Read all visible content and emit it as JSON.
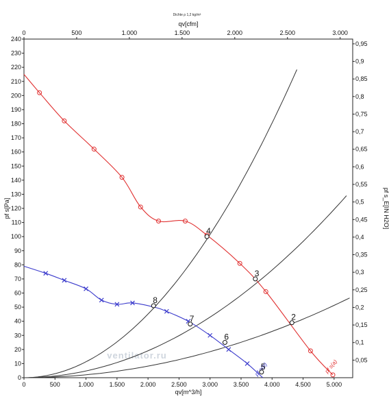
{
  "chart_data": {
    "type": "line",
    "title": "Dichte ρ 1,2 kg/m³",
    "xlabel": "qv[m^3/h]",
    "x2label": "qv[cfm]",
    "ylabel": "pf s[Pa]",
    "y2label": "pf s_E[IN H2O]",
    "watermark": "ventilator.ru",
    "xlim": [
      0,
      5300
    ],
    "ylim": [
      0,
      240
    ],
    "x2lim": [
      0,
      3119
    ],
    "y2lim": [
      0,
      0.9635
    ],
    "grid": false,
    "x_ticks": [
      "0",
      "500",
      "1.000",
      "1.500",
      "2.000",
      "2.500",
      "3.000",
      "3.500",
      "4.000",
      "4.500",
      "5.000"
    ],
    "x2_ticks": [
      "0",
      "500",
      "1.000",
      "1.500",
      "2.000",
      "2.500",
      "3.000"
    ],
    "y_ticks": [
      "0",
      "10",
      "20",
      "30",
      "40",
      "50",
      "60",
      "70",
      "80",
      "90",
      "100",
      "110",
      "120",
      "130",
      "140",
      "150",
      "160",
      "170",
      "180",
      "190",
      "200",
      "210",
      "220",
      "230",
      "240"
    ],
    "y2_ticks": [
      "0,05",
      "0,1",
      "0,15",
      "0,2",
      "0,25",
      "0,3",
      "0,35",
      "0,4",
      "0,45",
      "0,5",
      "0,55",
      "0,6",
      "0,65",
      "0,7",
      "0,75",
      "0,8",
      "0,85",
      "0,9",
      "0,95"
    ],
    "series": [
      {
        "name": "pf s(a)",
        "color": "#e03030",
        "marker": "circle",
        "x": [
          0,
          250,
          650,
          1130,
          1580,
          1880,
          2170,
          2600,
          2950,
          3480,
          3900,
          4620,
          4980
        ],
        "y": [
          215,
          202,
          182,
          162,
          142,
          121,
          111,
          111,
          101,
          81,
          61,
          19,
          2
        ],
        "markers": [
          [
            250,
            202
          ],
          [
            650,
            182
          ],
          [
            1130,
            162
          ],
          [
            1580,
            142
          ],
          [
            1880,
            121
          ],
          [
            2170,
            111
          ],
          [
            2600,
            111
          ],
          [
            2950,
            101
          ],
          [
            3480,
            81
          ],
          [
            3900,
            61
          ],
          [
            4620,
            19
          ],
          [
            4980,
            2
          ]
        ]
      },
      {
        "name": "pf s(b)",
        "color": "#3a3acc",
        "marker": "x",
        "x": [
          0,
          350,
          650,
          1000,
          1250,
          1500,
          1750,
          2100,
          2300,
          2650,
          3000,
          3300,
          3600,
          3850
        ],
        "y": [
          79,
          74,
          69,
          63,
          55,
          52,
          53,
          50,
          47,
          40,
          30,
          20,
          10,
          0
        ],
        "markers": [
          [
            350,
            74
          ],
          [
            650,
            69
          ],
          [
            1000,
            63
          ],
          [
            1250,
            55
          ],
          [
            1500,
            52
          ],
          [
            1750,
            53
          ],
          [
            2300,
            47
          ],
          [
            2650,
            40
          ],
          [
            3000,
            30
          ],
          [
            3300,
            20
          ],
          [
            3600,
            10
          ]
        ]
      }
    ],
    "system_curves": [
      {
        "name": "curve-4",
        "k_pa": 11.28,
        "x_end": 4400
      },
      {
        "name": "curve-3",
        "k_pa": 4.77,
        "x_end": 5200
      },
      {
        "name": "curve-2",
        "k_pa": 2.05,
        "x_end": 5250
      }
    ],
    "operating_points": [
      {
        "label": "4",
        "x": 2950,
        "y": 100
      },
      {
        "label": "3",
        "x": 3730,
        "y": 70
      },
      {
        "label": "2",
        "x": 4320,
        "y": 39
      },
      {
        "label": "8",
        "x": 2090,
        "y": 51
      },
      {
        "label": "7",
        "x": 2680,
        "y": 38
      },
      {
        "label": "6",
        "x": 3240,
        "y": 25
      },
      {
        "label": "5",
        "x": 3830,
        "y": 4
      }
    ]
  }
}
